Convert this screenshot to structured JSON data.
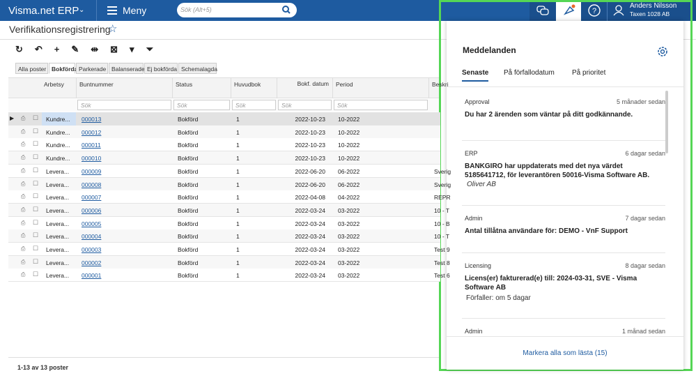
{
  "header": {
    "app": "Visma.net ERP",
    "menu": "Meny",
    "search_placeholder": "Sök (Alt+5)",
    "user_name": "Anders Nilsson",
    "company": "Taxen 1028 AB"
  },
  "page": {
    "title": "Verifikationsregistrering",
    "tabs": [
      "Alla poster",
      "Bokförda",
      "Parkerade",
      "Balanserade",
      "Ej bokförda",
      "Schemalagda"
    ],
    "table": {
      "columns": [
        "Arbetsy",
        "Buntnummer",
        "Status",
        "Huvudbok",
        "Bokf. datum",
        "Period",
        "Beskri"
      ],
      "filter_placeholder": "Sök",
      "rows": [
        [
          "Kundre...",
          "000013",
          "Bokförd",
          "1",
          "2022-10-23",
          "10-2022",
          ""
        ],
        [
          "Kundre...",
          "000012",
          "Bokförd",
          "1",
          "2022-10-23",
          "10-2022",
          ""
        ],
        [
          "Kundre...",
          "000011",
          "Bokförd",
          "1",
          "2022-10-23",
          "10-2022",
          ""
        ],
        [
          "Kundre...",
          "000010",
          "Bokförd",
          "1",
          "2022-10-23",
          "10-2022",
          ""
        ],
        [
          "Levera...",
          "000009",
          "Bokförd",
          "1",
          "2022-06-20",
          "06-2022",
          "Sverig"
        ],
        [
          "Levera...",
          "000008",
          "Bokförd",
          "1",
          "2022-06-20",
          "06-2022",
          "Sverig"
        ],
        [
          "Levera...",
          "000007",
          "Bokförd",
          "1",
          "2022-04-08",
          "04-2022",
          "REPR"
        ],
        [
          "Levera...",
          "000006",
          "Bokförd",
          "1",
          "2022-03-24",
          "03-2022",
          "10 - T"
        ],
        [
          "Levera...",
          "000005",
          "Bokförd",
          "1",
          "2022-03-24",
          "03-2022",
          "10 - B"
        ],
        [
          "Levera...",
          "000004",
          "Bokförd",
          "1",
          "2022-03-24",
          "03-2022",
          "10 - T"
        ],
        [
          "Levera...",
          "000003",
          "Bokförd",
          "1",
          "2022-03-24",
          "03-2022",
          "Test 9"
        ],
        [
          "Levera...",
          "000002",
          "Bokförd",
          "1",
          "2022-03-24",
          "03-2022",
          "Test 8"
        ],
        [
          "Levera...",
          "000001",
          "Bokförd",
          "1",
          "2022-03-24",
          "03-2022",
          "Test 6"
        ]
      ]
    },
    "footer": "1-13 av 13 poster"
  },
  "notifications": {
    "title": "Meddelanden",
    "tabs": [
      "Senaste",
      "På förfallodatum",
      "På prioritet"
    ],
    "items": [
      {
        "category": "Approval",
        "time": "5 månader sedan",
        "message": "Du har 2 ärenden som väntar på ditt godkännande."
      },
      {
        "category": "ERP",
        "time": "6 dagar sedan",
        "message": "BANKGIRO har uppdaterats med det nya värdet 5185641712, för leverantören 50016-Visma Software AB.",
        "note": "Oliver AB"
      },
      {
        "category": "Admin",
        "time": "7 dagar sedan",
        "message": "Antal tillåtna användare för: DEMO - VnF Support"
      },
      {
        "category": "Licensing",
        "time": "8 dagar sedan",
        "message": "Licens(er) fakturerad(e) till: 2024-03-31, SVE - Visma Software AB",
        "due": "Förfaller: om 5 dagar"
      },
      {
        "category": "Admin",
        "time": "1 månad sedan"
      }
    ],
    "mark_all": "Markera alla som lästa (15)"
  }
}
